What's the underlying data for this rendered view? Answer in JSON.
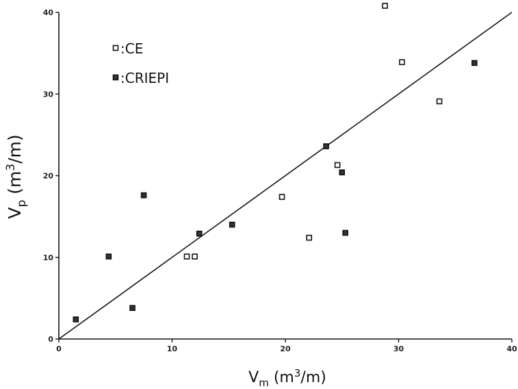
{
  "chart_data": {
    "type": "scatter",
    "title": "",
    "xlabel": {
      "main": "V",
      "sub": "m",
      "rest": " (m",
      "sup": "3",
      "tail": "/m)"
    },
    "ylabel": {
      "main": "V",
      "sub": "p",
      "rest": " (m",
      "sup": "3",
      "tail": "/m)"
    },
    "xlim": [
      0,
      40
    ],
    "ylim": [
      0,
      40
    ],
    "x_ticks": [
      "0",
      "10",
      "20",
      "30",
      "40"
    ],
    "y_ticks": [
      "0",
      "10",
      "20",
      "30",
      "40"
    ],
    "grid": false,
    "legend_position": "top-left",
    "reference_line": {
      "from": [
        0,
        0
      ],
      "to": [
        40,
        40
      ]
    },
    "series": [
      {
        "name": ":CE",
        "marker": "open-square",
        "points": [
          {
            "x": 11.3,
            "y": 10.1
          },
          {
            "x": 12.0,
            "y": 10.1
          },
          {
            "x": 19.7,
            "y": 17.4
          },
          {
            "x": 22.1,
            "y": 12.4
          },
          {
            "x": 24.6,
            "y": 21.3
          },
          {
            "x": 28.8,
            "y": 40.8
          },
          {
            "x": 30.3,
            "y": 33.9
          },
          {
            "x": 33.6,
            "y": 29.1
          }
        ]
      },
      {
        "name": ":CRIEPI",
        "marker": "filled-square",
        "points": [
          {
            "x": 1.5,
            "y": 2.4
          },
          {
            "x": 4.4,
            "y": 10.1
          },
          {
            "x": 6.5,
            "y": 3.8
          },
          {
            "x": 7.5,
            "y": 17.6
          },
          {
            "x": 12.4,
            "y": 12.9
          },
          {
            "x": 15.3,
            "y": 14.0
          },
          {
            "x": 23.6,
            "y": 23.6
          },
          {
            "x": 25.0,
            "y": 20.4
          },
          {
            "x": 25.3,
            "y": 13.0
          },
          {
            "x": 36.7,
            "y": 33.8
          }
        ]
      }
    ]
  }
}
